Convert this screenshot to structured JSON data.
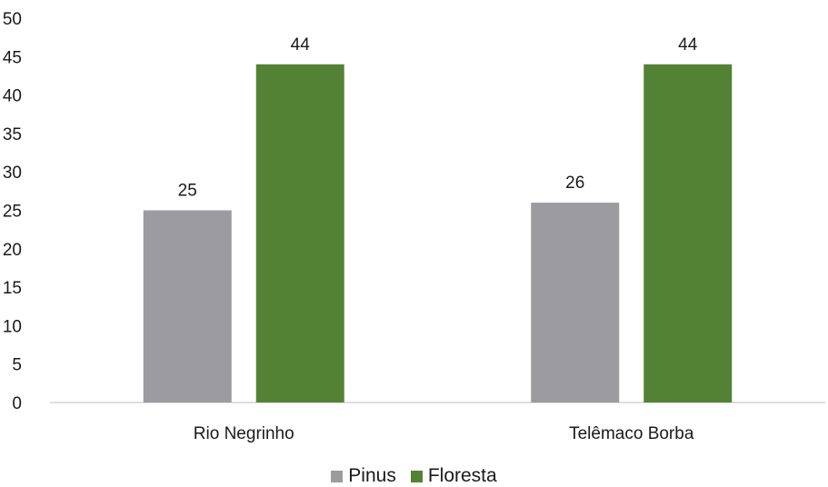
{
  "chart_data": {
    "type": "bar",
    "categories": [
      "Rio Negrinho",
      "Telêmaco Borba"
    ],
    "series": [
      {
        "name": "Pinus",
        "values": [
          25,
          26
        ],
        "color": "#9b9ba0"
      },
      {
        "name": "Floresta",
        "values": [
          44,
          44
        ],
        "color": "#548235"
      }
    ],
    "ylim": [
      0,
      50
    ],
    "yticks": [
      "0",
      "5",
      "10",
      "15",
      "20",
      "25",
      "30",
      "35",
      "40",
      "45",
      "50"
    ],
    "legend_position": "bottom",
    "data_labels": true,
    "grid": false
  }
}
